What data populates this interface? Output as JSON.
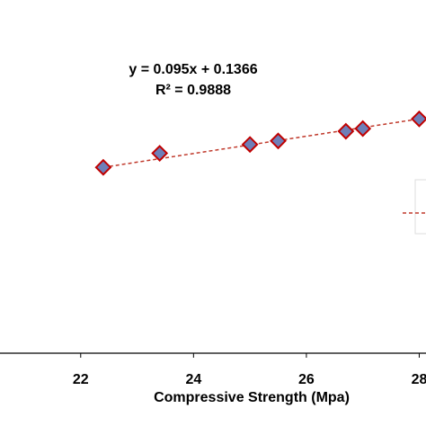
{
  "chart_data": {
    "type": "scatter",
    "x_label": "Compressive Strength (Mpa)",
    "trendline": {
      "equation": "y = 0.095x + 0.1366",
      "r_squared": "R² = 0.9888",
      "color": "#c0392b"
    },
    "series": [
      {
        "color": "#6e7fb8",
        "edge_color": "#c00000",
        "x": [
          22.4,
          23.4,
          25.0,
          25.5,
          26.7,
          27.0,
          28.0
        ],
        "values": [
          2.26,
          2.42,
          2.52,
          2.56,
          2.67,
          2.7,
          2.81
        ]
      }
    ],
    "xlim": [
      20.57,
      28.12
    ],
    "xticks": [
      22,
      24,
      26,
      28
    ],
    "ylim": [
      0.15,
      4.16
    ]
  }
}
